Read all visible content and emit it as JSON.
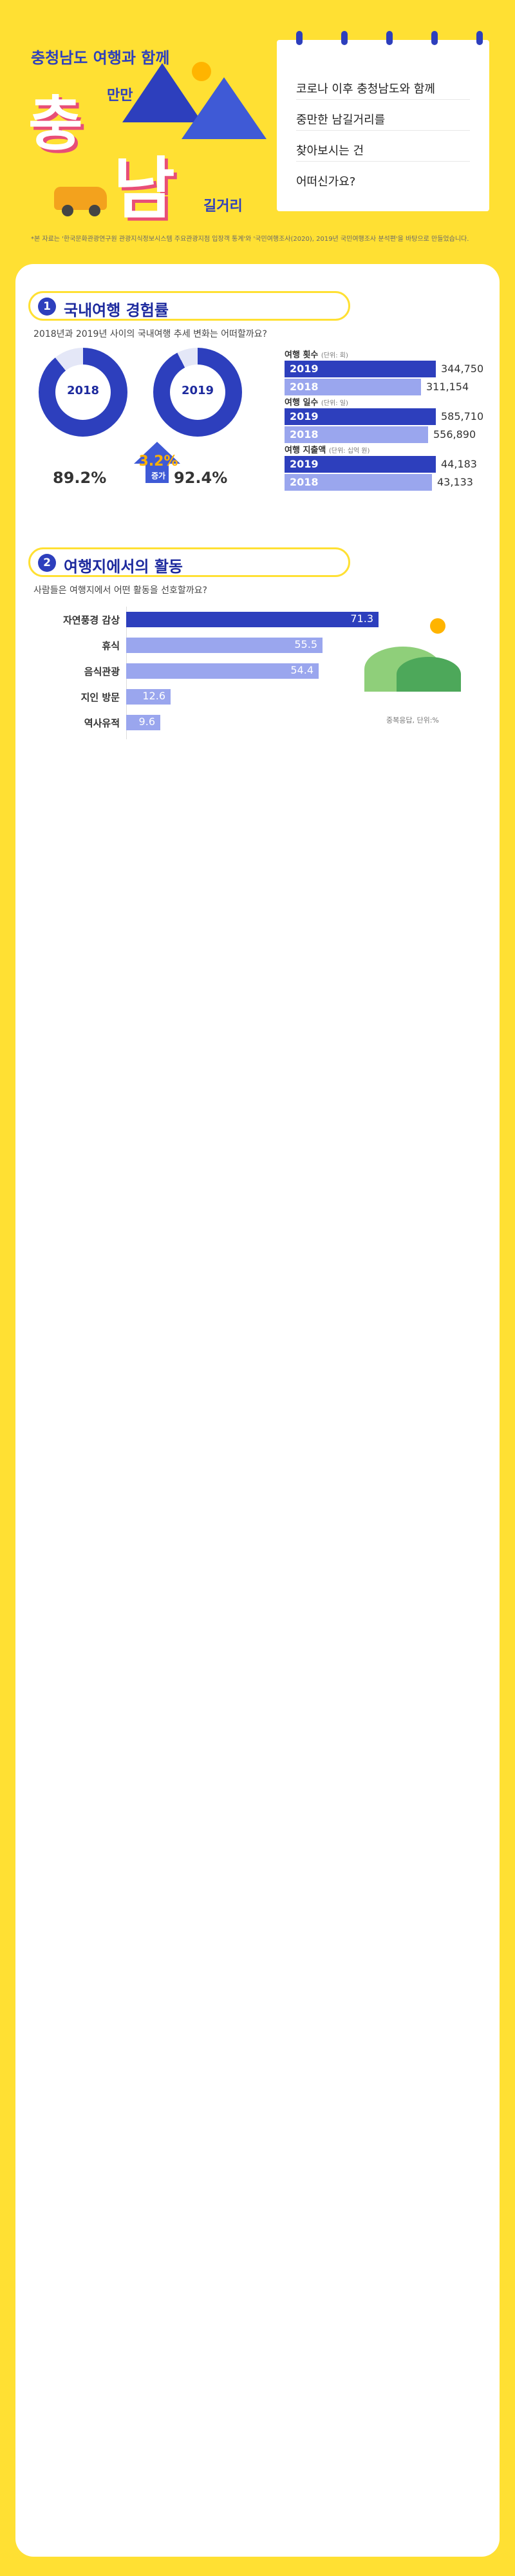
{
  "header": {
    "kicker": "충청남도 여행과 함께",
    "big1": "충",
    "small1": "만만",
    "big2": "남",
    "small2": "길거리",
    "note_lines": [
      "코로나 이후 충청남도와 함께",
      "중만한 남길거리를",
      "찾아보시는 건",
      "어떠신가요?"
    ],
    "source": "*본 자료는 '한국문화관광연구원 관광지식정보시스템 주요관광지점 입장객 통계'와 '국민여행조사(2020), 2019년 국민여행조사 분석편'을 바탕으로 만들었습니다."
  },
  "section1": {
    "num": "1",
    "title": "국내여행 경험률",
    "question": "2018년과 2019년 사이의 국내여행 추세 변화는 어떠할까요?",
    "rings": [
      {
        "year": "2018",
        "pct": "89.2%",
        "value": 89.2
      },
      {
        "year": "2019",
        "pct": "92.4%",
        "value": 92.4
      }
    ],
    "increase": "3.2%",
    "increase_unit": "증가",
    "metrics": [
      {
        "label": "여행 횟수",
        "unit": "(단위: 회)",
        "rows": [
          {
            "year": "2019",
            "value": 344750,
            "text": "344,750"
          },
          {
            "year": "2018",
            "value": 311154,
            "text": "311,154"
          }
        ]
      },
      {
        "label": "여행 일수",
        "unit": "(단위: 일)",
        "rows": [
          {
            "year": "2019",
            "value": 585710,
            "text": "585,710"
          },
          {
            "year": "2018",
            "value": 556890,
            "text": "556,890"
          }
        ]
      },
      {
        "label": "여행 지출액",
        "unit": "(단위: 십억 원)",
        "rows": [
          {
            "year": "2019",
            "value": 44183,
            "text": "44,183"
          },
          {
            "year": "2018",
            "value": 43133,
            "text": "43,133"
          }
        ]
      }
    ]
  },
  "section2": {
    "num": "2",
    "title": "여행지에서의 활동",
    "question": "사람들은 여행지에서 어떤 활동을 선호할까요?",
    "activities": [
      {
        "label": "자연풍경 감상",
        "value": 71.3,
        "text": "71.3"
      },
      {
        "label": "휴식",
        "value": 55.5,
        "text": "55.5"
      },
      {
        "label": "음식관광",
        "value": 54.4,
        "text": "54.4"
      },
      {
        "label": "지인 방문",
        "value": 12.6,
        "text": "12.6"
      },
      {
        "label": "역사유적",
        "value": 9.6,
        "text": "9.6"
      }
    ],
    "note": "중복응답, 단위:%"
  },
  "colors": {
    "yellow": "#ffe033",
    "blue": "#2d3fbd",
    "light_blue": "#9aa6ee",
    "pink": "#e84e77"
  }
}
